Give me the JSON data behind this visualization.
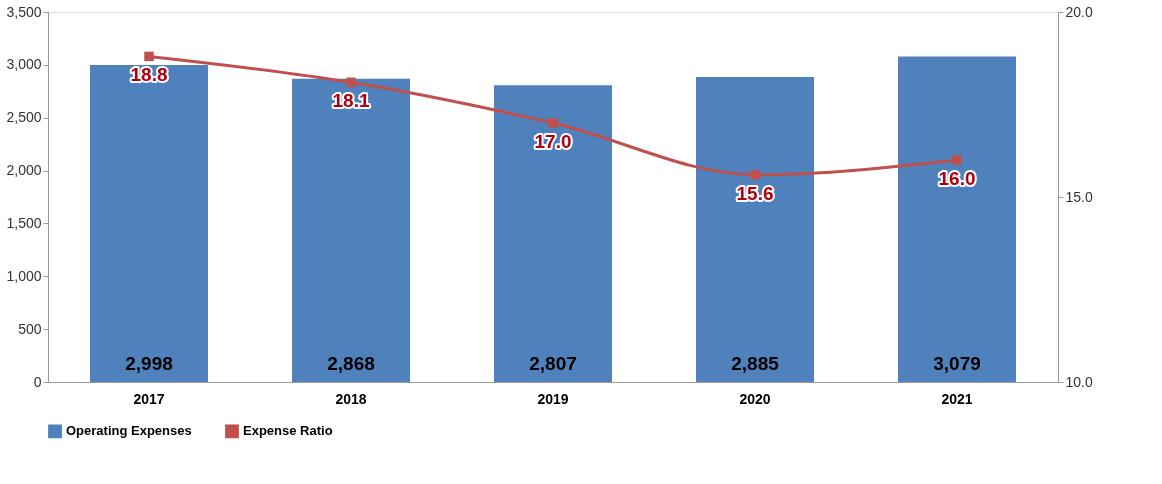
{
  "chart_data": {
    "type": "bar",
    "categories": [
      "2017",
      "2018",
      "2019",
      "2020",
      "2021"
    ],
    "series": [
      {
        "name": "Operating Expenses",
        "color": "#4f81bd",
        "values": [
          2998,
          2868,
          2807,
          2885,
          3079
        ],
        "value_labels": [
          "2,998",
          "2,868",
          "2,807",
          "2,885",
          "3,079"
        ]
      },
      {
        "name": "Expense Ratio",
        "type": "line",
        "axis": "y2",
        "color": "#c0504d",
        "marker": "square",
        "values": [
          18.8,
          18.1,
          17.0,
          15.6,
          16.0
        ],
        "value_labels": [
          "18.8",
          "18.1",
          "17.0",
          "15.6",
          "16.0"
        ]
      }
    ],
    "ylim": [
      0,
      3500
    ],
    "yticks": [
      0,
      500,
      {
        "value": 1000,
        "label": "1,000"
      },
      {
        "value": 1500,
        "label": "1,500"
      },
      {
        "value": 2000,
        "label": "2,000"
      },
      {
        "value": 2500,
        "label": "2,500"
      },
      {
        "value": 3000,
        "label": "3,000"
      },
      {
        "value": 3500,
        "label": "3,500"
      }
    ],
    "y2lim": [
      10,
      20
    ],
    "y2ticks": [
      {
        "value": 10,
        "label": "10.0"
      },
      {
        "value": 15,
        "label": "15.0"
      },
      {
        "value": 20,
        "label": "20.0"
      }
    ],
    "grid": false,
    "legend": "bottom"
  }
}
